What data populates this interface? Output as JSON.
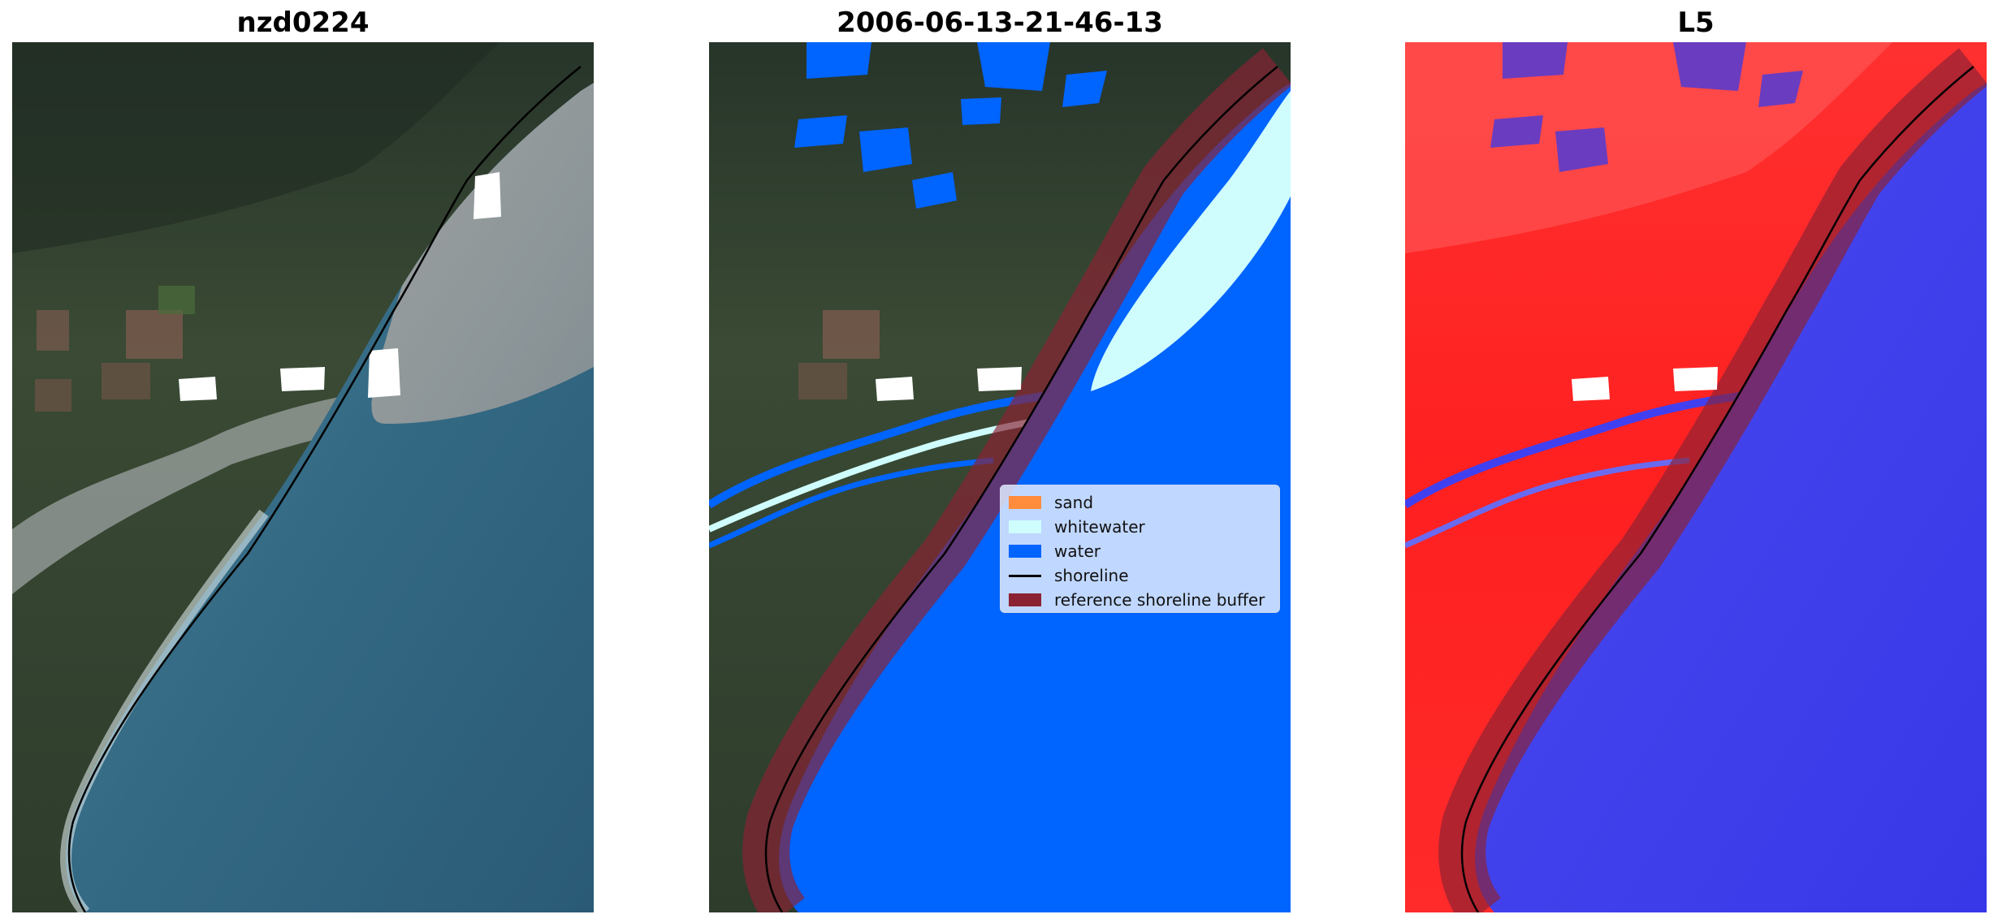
{
  "panels": [
    {
      "title": "nzd0224"
    },
    {
      "title": "2006-06-13-21-46-13"
    },
    {
      "title": "L5"
    }
  ],
  "legend": {
    "items": [
      {
        "label": "sand",
        "color": "#ff8c3d"
      },
      {
        "label": "whitewater",
        "color": "#cffdfd"
      },
      {
        "label": "water",
        "color": "#0064ff"
      },
      {
        "label": "shoreline",
        "color": "#000000"
      },
      {
        "label": "reference shoreline buffer",
        "color": "#8b2233"
      }
    ]
  },
  "colors": {
    "land": "#3b4d35",
    "sea": "#35708a",
    "water_class": "#0064ff",
    "whitewater_class": "#cffdfd",
    "buffer": "#8b2233",
    "index_positive": "#ff2020",
    "index_negative": "#3030ee"
  }
}
